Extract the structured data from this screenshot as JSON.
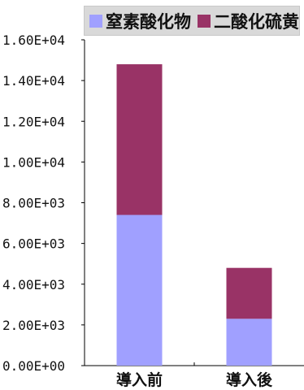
{
  "chart_data": {
    "type": "bar",
    "stacked": true,
    "categories": [
      "導入前",
      "導入後"
    ],
    "series": [
      {
        "name": "窒素酸化物",
        "values": [
          7400,
          2300
        ],
        "color": "#a0a0ff"
      },
      {
        "name": "二酸化硫黄",
        "values": [
          7400,
          2500
        ],
        "color": "#993366"
      }
    ],
    "ylim": [
      0,
      16000
    ],
    "yticks": [
      "0.00E+00",
      "2.00E+03",
      "4.00E+03",
      "6.00E+03",
      "8.00E+03",
      "1.00E+04",
      "1.20E+04",
      "1.40E+04",
      "1.60E+04"
    ],
    "ytick_values": [
      0,
      2000,
      4000,
      6000,
      8000,
      10000,
      12000,
      14000,
      16000
    ],
    "title": "",
    "xlabel": "",
    "ylabel": "",
    "legend_position": "top",
    "grid": false
  }
}
